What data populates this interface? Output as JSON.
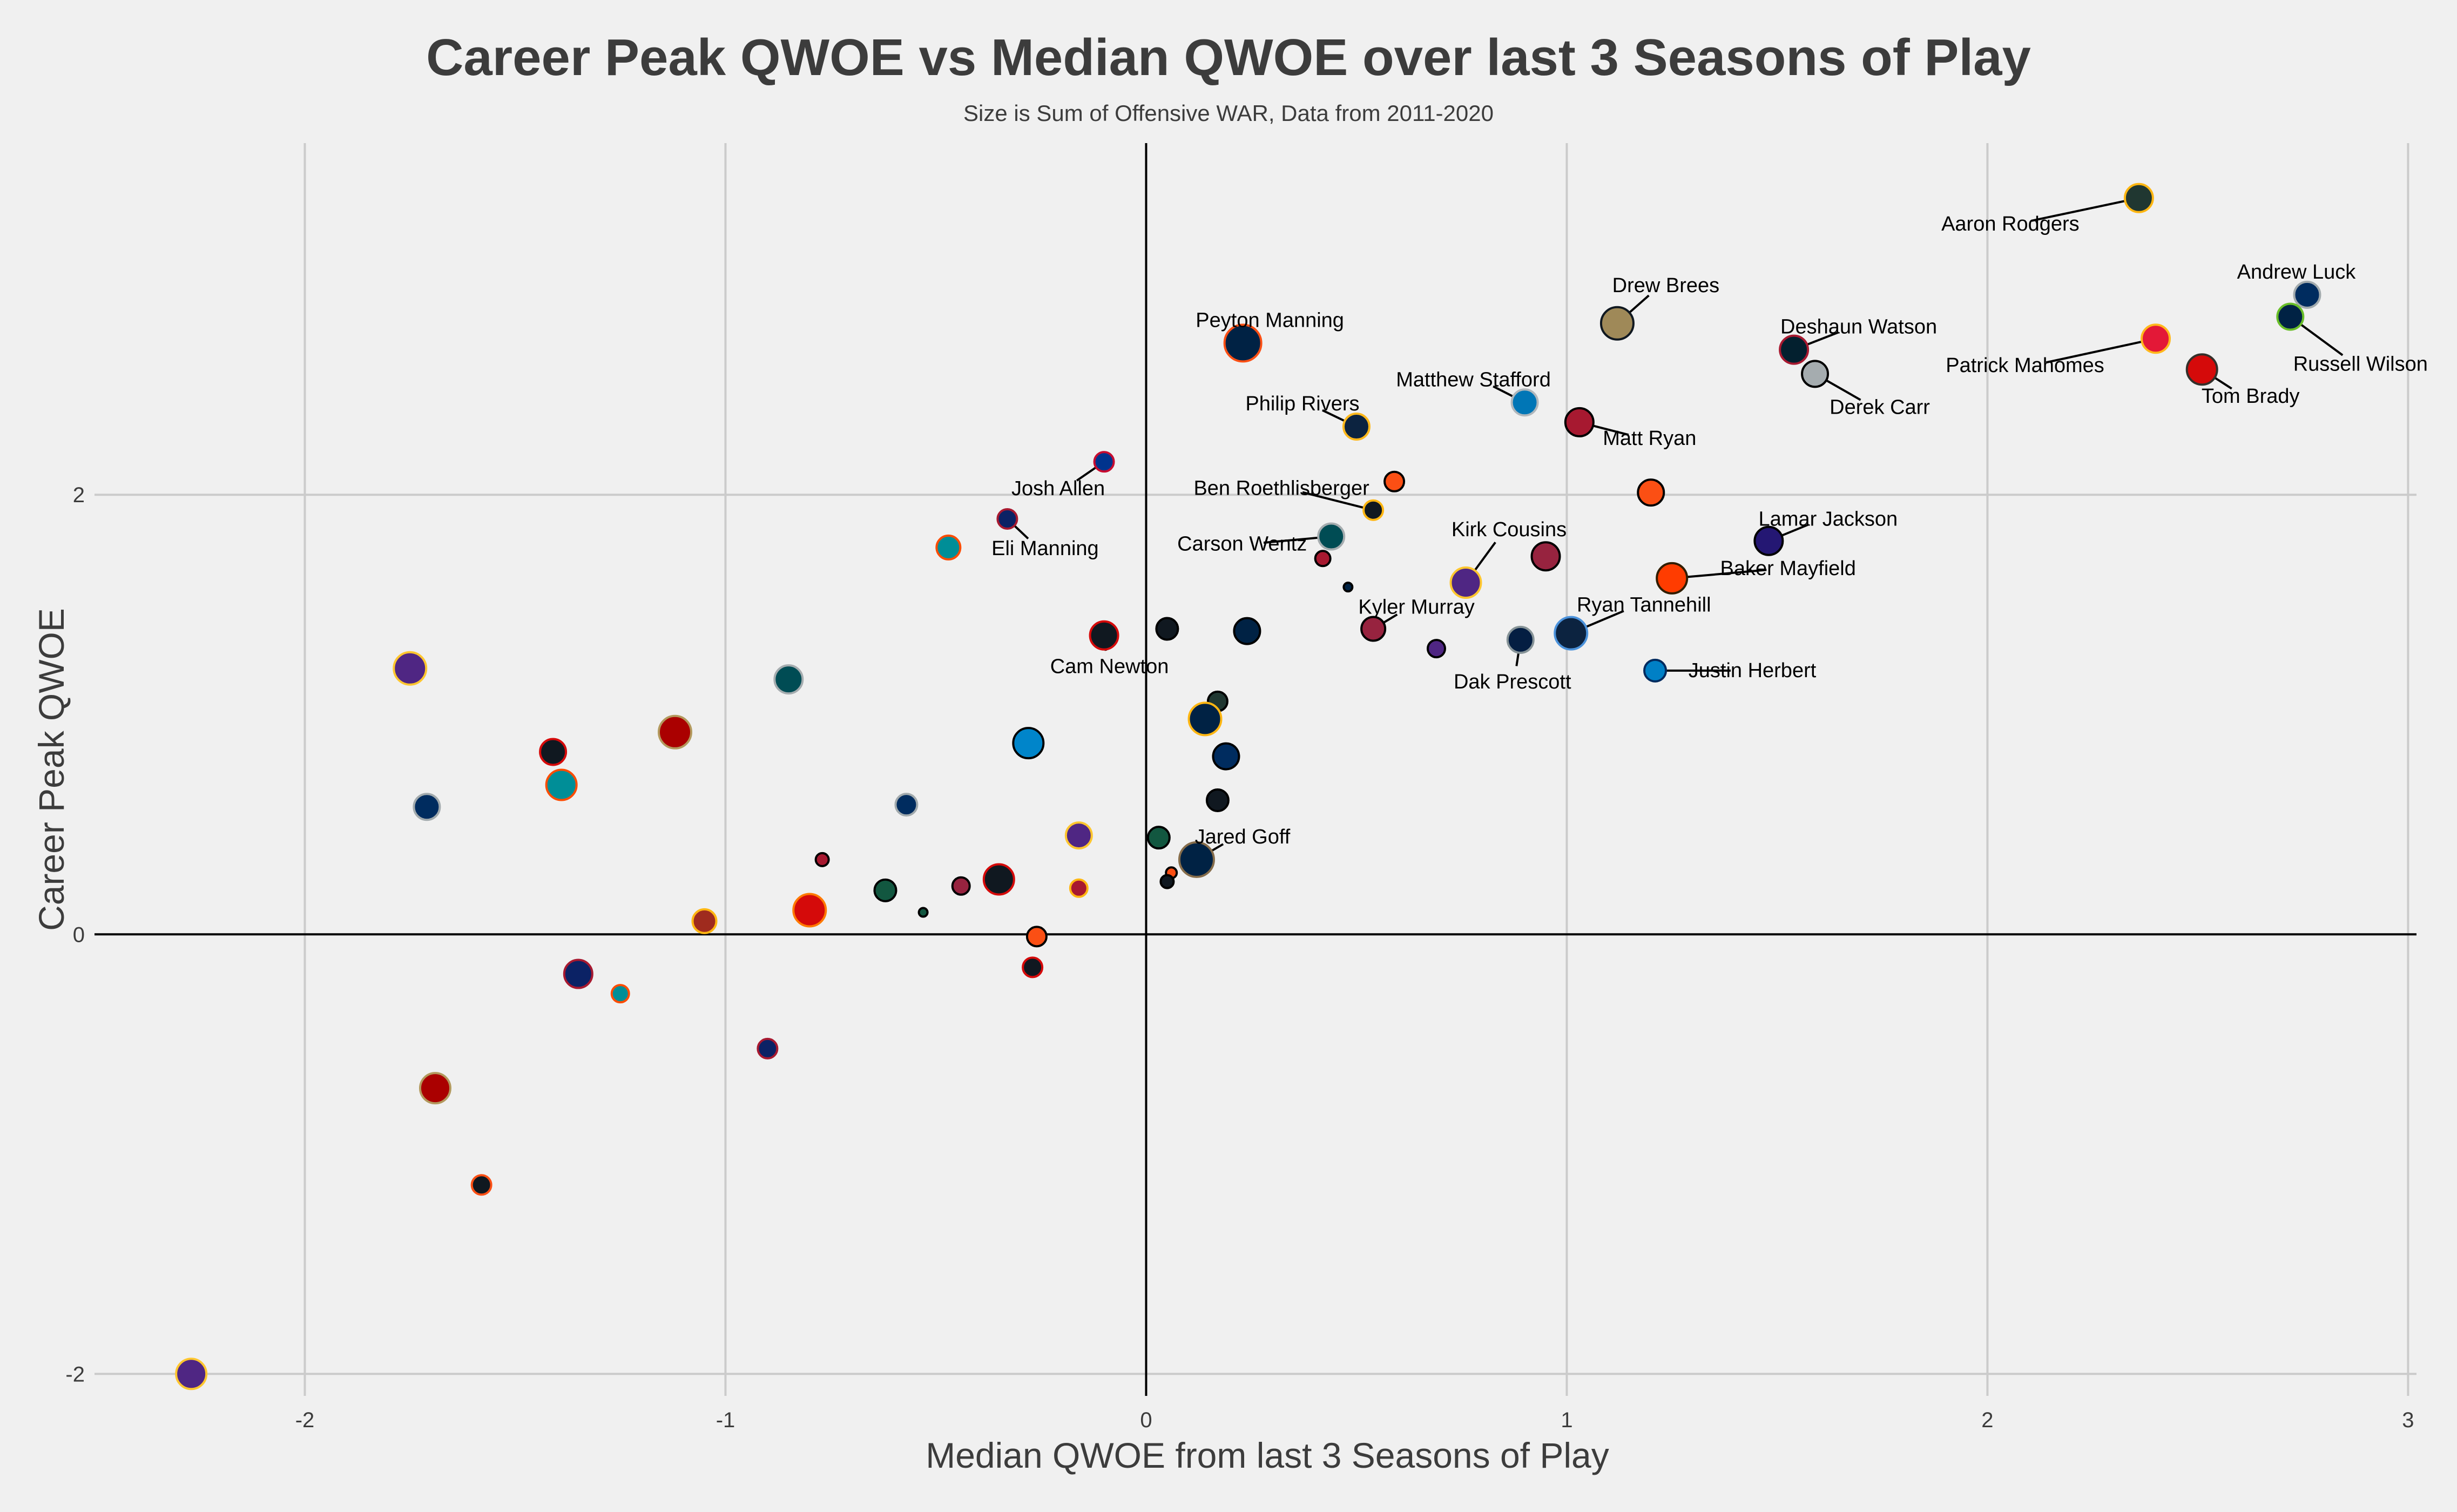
{
  "chart_data": {
    "type": "scatter",
    "title": "Career Peak QWOE vs Median QWOE over last 3 Seasons of Play",
    "subtitle": "Size is Sum of Offensive WAR, Data from 2011-2020",
    "xlabel": "Median QWOE from last 3 Seasons of Play",
    "ylabel": "Career Peak QWOE",
    "xlim": [
      -2.5,
      3.02
    ],
    "ylim": [
      -2.1,
      3.6
    ],
    "xticks": [
      -2,
      -1,
      0,
      1,
      2,
      3
    ],
    "xtick_labels": [
      "-2",
      "-1",
      "0",
      "1",
      "2",
      "3"
    ],
    "yticks": [
      -2,
      0,
      2
    ],
    "ytick_labels": [
      "-2",
      "0",
      "2"
    ],
    "grid": true,
    "points": [
      {
        "label": "Aaron Rodgers",
        "x": 2.36,
        "y": 3.35,
        "size": 26,
        "fill": "#203731",
        "edge": "#FFB612",
        "label_dx": -238,
        "label_dy": 48
      },
      {
        "label": "Andrew Luck",
        "x": 2.76,
        "y": 2.91,
        "size": 24,
        "fill": "#002C5F",
        "edge": "#A2AAAD",
        "label_dx": -20,
        "label_dy": -42
      },
      {
        "label": "Russell Wilson",
        "x": 2.72,
        "y": 2.81,
        "size": 24,
        "fill": "#002244",
        "edge": "#69BE28",
        "label_dx": 130,
        "label_dy": 88
      },
      {
        "label": "Patrick Mahomes",
        "x": 2.4,
        "y": 2.71,
        "size": 26,
        "fill": "#E31837",
        "edge": "#FFB81C",
        "label_dx": -242,
        "label_dy": 50
      },
      {
        "label": "Tom Brady",
        "x": 2.51,
        "y": 2.57,
        "size": 28,
        "fill": "#D50A0A",
        "edge": "#34302B",
        "label_dx": 90,
        "label_dy": 50
      },
      {
        "label": "Drew Brees",
        "x": 1.12,
        "y": 2.78,
        "size": 30,
        "fill": "#9F8958",
        "edge": "#101820",
        "label_dx": 90,
        "label_dy": -70
      },
      {
        "label": "Deshaun Watson",
        "x": 1.54,
        "y": 2.66,
        "size": 26,
        "fill": "#03202F",
        "edge": "#A71930",
        "label_dx": 120,
        "label_dy": -42
      },
      {
        "label": "Derek Carr",
        "x": 1.59,
        "y": 2.55,
        "size": 24,
        "fill": "#A5ACAF",
        "edge": "#000000",
        "label_dx": 120,
        "label_dy": 62
      },
      {
        "label": "Peyton Manning",
        "x": 0.23,
        "y": 2.69,
        "size": 34,
        "fill": "#002244",
        "edge": "#FB4F14",
        "label_dx": 50,
        "label_dy": -42
      },
      {
        "label": "Matthew Stafford",
        "x": 0.9,
        "y": 2.42,
        "size": 24,
        "fill": "#0076B6",
        "edge": "#B0B7BC",
        "label_dx": -95,
        "label_dy": -42
      },
      {
        "label": "Matt Ryan",
        "x": 1.03,
        "y": 2.33,
        "size": 26,
        "fill": "#A71930",
        "edge": "#000000",
        "label_dx": 130,
        "label_dy": 30
      },
      {
        "label": "Philip Rivers",
        "x": 0.5,
        "y": 2.31,
        "size": 24,
        "fill": "#0C2340",
        "edge": "#FFB81C",
        "label_dx": -100,
        "label_dy": -42
      },
      {
        "label": "Ben Roethlisberger",
        "x": 0.54,
        "y": 1.93,
        "size": 18,
        "fill": "#101820",
        "edge": "#FFB612",
        "label_dx": -170,
        "label_dy": -40
      },
      {
        "label": "Josh Allen",
        "x": -0.1,
        "y": 2.15,
        "size": 18,
        "fill": "#00338D",
        "edge": "#C60C30",
        "label_dx": -85,
        "label_dy": 50
      },
      {
        "label": "Eli Manning",
        "x": -0.33,
        "y": 1.89,
        "size": 18,
        "fill": "#0B2265",
        "edge": "#A71930",
        "label_dx": 70,
        "label_dy": 55
      },
      {
        "label": "Carson Wentz",
        "x": 0.44,
        "y": 1.81,
        "size": 24,
        "fill": "#004C54",
        "edge": "#A5ACAF",
        "label_dx": -165,
        "label_dy": 14
      },
      {
        "label": "Kirk Cousins",
        "x": 0.76,
        "y": 1.6,
        "size": 28,
        "fill": "#4F2683",
        "edge": "#FFC62F",
        "label_dx": 80,
        "label_dy": -98
      },
      {
        "label": "Lamar Jackson",
        "x": 1.48,
        "y": 1.79,
        "size": 26,
        "fill": "#241773",
        "edge": "#000000",
        "label_dx": 110,
        "label_dy": -40
      },
      {
        "label": "Baker Mayfield",
        "x": 1.25,
        "y": 1.62,
        "size": 28,
        "fill": "#FF3C00",
        "edge": "#311D00",
        "label_dx": 215,
        "label_dy": -18
      },
      {
        "label": "Kyler Murray",
        "x": 0.54,
        "y": 1.39,
        "size": 22,
        "fill": "#97233F",
        "edge": "#000000",
        "label_dx": 80,
        "label_dy": -40
      },
      {
        "label": "Ryan Tannehill",
        "x": 1.01,
        "y": 1.37,
        "size": 30,
        "fill": "#0C2340",
        "edge": "#4B92DB",
        "label_dx": 135,
        "label_dy": -52
      },
      {
        "label": "Dak Prescott",
        "x": 0.89,
        "y": 1.34,
        "size": 24,
        "fill": "#041E42",
        "edge": "#869397",
        "label_dx": -15,
        "label_dy": 78
      },
      {
        "label": "Justin Herbert",
        "x": 1.21,
        "y": 1.2,
        "size": 20,
        "fill": "#0080C6",
        "edge": "#002A5E",
        "label_dx": 180,
        "label_dy": 0
      },
      {
        "label": "Cam Newton",
        "x": -0.1,
        "y": 1.36,
        "size": 26,
        "fill": "#101820",
        "edge": "#D50A0A",
        "label_dx": 10,
        "label_dy": 58
      },
      {
        "label": "Jared Goff",
        "x": 0.12,
        "y": 0.34,
        "size": 32,
        "fill": "#002244",
        "edge": "#866D4B",
        "label_dx": 85,
        "label_dy": -42
      },
      {
        "label": "",
        "x": 0.0,
        "y": 0.0,
        "size": 0,
        "fill": "#000000",
        "edge": "#000000"
      },
      {
        "label": "",
        "x": 0.59,
        "y": 2.06,
        "size": 18,
        "fill": "#FB4F14",
        "edge": "#000000"
      },
      {
        "label": "",
        "x": 1.2,
        "y": 2.01,
        "size": 24,
        "fill": "#FB4F14",
        "edge": "#000000"
      },
      {
        "label": "",
        "x": 0.42,
        "y": 1.71,
        "size": 14,
        "fill": "#A71930",
        "edge": "#000000"
      },
      {
        "label": "",
        "x": 0.48,
        "y": 1.58,
        "size": 8,
        "fill": "#002244",
        "edge": "#000000"
      },
      {
        "label": "",
        "x": 0.95,
        "y": 1.72,
        "size": 26,
        "fill": "#97233F",
        "edge": "#000000"
      },
      {
        "label": "",
        "x": 0.69,
        "y": 1.3,
        "size": 16,
        "fill": "#4F2683",
        "edge": "#000000"
      },
      {
        "label": "",
        "x": 0.05,
        "y": 1.39,
        "size": 20,
        "fill": "#101820",
        "edge": "#000000"
      },
      {
        "label": "",
        "x": 0.24,
        "y": 1.38,
        "size": 24,
        "fill": "#002244",
        "edge": "#000000"
      },
      {
        "label": "",
        "x": 0.17,
        "y": 1.06,
        "size": 18,
        "fill": "#203731",
        "edge": "#000000"
      },
      {
        "label": "",
        "x": 0.14,
        "y": 0.98,
        "size": 30,
        "fill": "#002244",
        "edge": "#FFB612"
      },
      {
        "label": "",
        "x": 0.19,
        "y": 0.81,
        "size": 24,
        "fill": "#002C5F",
        "edge": "#000000"
      },
      {
        "label": "",
        "x": 0.17,
        "y": 0.61,
        "size": 20,
        "fill": "#101820",
        "edge": "#000000"
      },
      {
        "label": "",
        "x": 0.03,
        "y": 0.44,
        "size": 20,
        "fill": "#125740",
        "edge": "#000000"
      },
      {
        "label": "",
        "x": 0.06,
        "y": 0.28,
        "size": 10,
        "fill": "#FB4F14",
        "edge": "#000000"
      },
      {
        "label": "",
        "x": 0.05,
        "y": 0.24,
        "size": 12,
        "fill": "#101820",
        "edge": "#000000"
      },
      {
        "label": "",
        "x": -0.28,
        "y": 0.87,
        "size": 28,
        "fill": "#0085CA",
        "edge": "#000000"
      },
      {
        "label": "",
        "x": -0.85,
        "y": 1.16,
        "size": 26,
        "fill": "#004C54",
        "edge": "#A5ACAF"
      },
      {
        "label": "",
        "x": -0.47,
        "y": 1.76,
        "size": 22,
        "fill": "#008E97",
        "edge": "#FC4C02"
      },
      {
        "label": "",
        "x": -1.75,
        "y": 1.21,
        "size": 30,
        "fill": "#4F2683",
        "edge": "#FFC62F"
      },
      {
        "label": "",
        "x": -1.41,
        "y": 0.83,
        "size": 24,
        "fill": "#101820",
        "edge": "#D50A0A"
      },
      {
        "label": "",
        "x": -1.12,
        "y": 0.92,
        "size": 30,
        "fill": "#AA0000",
        "edge": "#B3995D"
      },
      {
        "label": "",
        "x": -1.39,
        "y": 0.68,
        "size": 28,
        "fill": "#008E97",
        "edge": "#FC4C02"
      },
      {
        "label": "",
        "x": -1.71,
        "y": 0.58,
        "size": 24,
        "fill": "#002C5F",
        "edge": "#A2AAAD"
      },
      {
        "label": "",
        "x": -0.57,
        "y": 0.59,
        "size": 20,
        "fill": "#002C5F",
        "edge": "#A2AAAD"
      },
      {
        "label": "",
        "x": -0.16,
        "y": 0.45,
        "size": 24,
        "fill": "#4F2683",
        "edge": "#FFC62F"
      },
      {
        "label": "",
        "x": -0.77,
        "y": 0.34,
        "size": 12,
        "fill": "#A71930",
        "edge": "#000000"
      },
      {
        "label": "",
        "x": -0.35,
        "y": 0.25,
        "size": 28,
        "fill": "#101820",
        "edge": "#D50A0A"
      },
      {
        "label": "",
        "x": -0.44,
        "y": 0.22,
        "size": 16,
        "fill": "#97233F",
        "edge": "#000000"
      },
      {
        "label": "",
        "x": -0.62,
        "y": 0.2,
        "size": 20,
        "fill": "#125740",
        "edge": "#000000"
      },
      {
        "label": "",
        "x": -0.16,
        "y": 0.21,
        "size": 16,
        "fill": "#A71930",
        "edge": "#FFB612"
      },
      {
        "label": "",
        "x": -0.53,
        "y": 0.1,
        "size": 8,
        "fill": "#125740",
        "edge": "#000000"
      },
      {
        "label": "",
        "x": -0.8,
        "y": 0.11,
        "size": 30,
        "fill": "#D50A0A",
        "edge": "#FF7900"
      },
      {
        "label": "",
        "x": -1.05,
        "y": 0.06,
        "size": 22,
        "fill": "#9F2B1E",
        "edge": "#FFB612"
      },
      {
        "label": "",
        "x": -0.26,
        "y": -0.01,
        "size": 18,
        "fill": "#FB4F14",
        "edge": "#000000"
      },
      {
        "label": "",
        "x": -0.27,
        "y": -0.15,
        "size": 18,
        "fill": "#101820",
        "edge": "#D50A0A"
      },
      {
        "label": "",
        "x": -1.35,
        "y": -0.18,
        "size": 26,
        "fill": "#0B2265",
        "edge": "#A71930"
      },
      {
        "label": "",
        "x": -1.25,
        "y": -0.27,
        "size": 16,
        "fill": "#008E97",
        "edge": "#FC4C02"
      },
      {
        "label": "",
        "x": -0.9,
        "y": -0.52,
        "size": 18,
        "fill": "#0B2265",
        "edge": "#A71930"
      },
      {
        "label": "",
        "x": -1.69,
        "y": -0.7,
        "size": 28,
        "fill": "#AA0000",
        "edge": "#B3995D"
      },
      {
        "label": "",
        "x": -1.58,
        "y": -1.14,
        "size": 18,
        "fill": "#101820",
        "edge": "#FB4F14"
      },
      {
        "label": "",
        "x": -2.27,
        "y": -2.0,
        "size": 28,
        "fill": "#4F2683",
        "edge": "#FFC62F"
      }
    ]
  },
  "colors": {
    "background": "#f0f0f0",
    "grid": "#cbcbcb",
    "axis_zero": "#000000",
    "text": "#3c3c3c"
  }
}
